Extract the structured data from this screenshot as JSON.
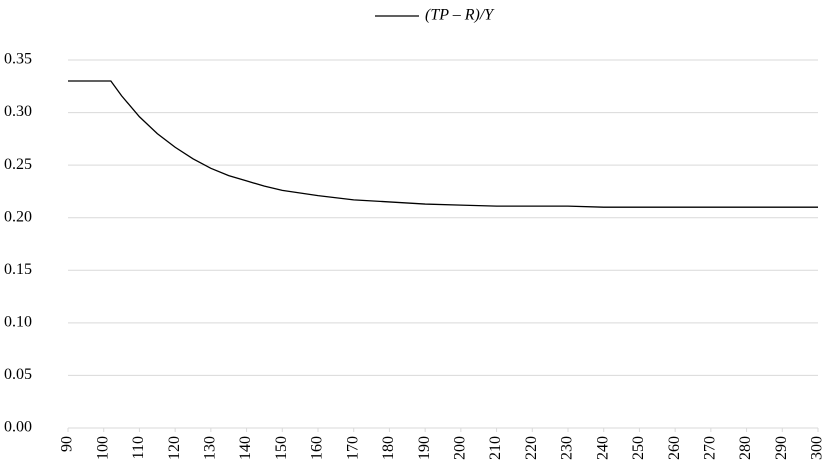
{
  "chart_data": {
    "type": "line",
    "x": [
      90,
      95,
      100,
      102,
      105,
      110,
      115,
      120,
      125,
      130,
      135,
      140,
      145,
      150,
      160,
      170,
      180,
      190,
      200,
      210,
      220,
      230,
      240,
      250,
      260,
      270,
      280,
      290,
      300
    ],
    "series": [
      {
        "name": "(TP – R)/Y",
        "color": "#000000",
        "values": [
          0.33,
          0.33,
          0.33,
          0.33,
          0.316,
          0.296,
          0.28,
          0.267,
          0.256,
          0.247,
          0.24,
          0.235,
          0.23,
          0.226,
          0.221,
          0.217,
          0.215,
          0.213,
          0.212,
          0.211,
          0.211,
          0.211,
          0.21,
          0.21,
          0.21,
          0.21,
          0.21,
          0.21,
          0.21
        ]
      }
    ],
    "xlim": [
      90,
      300
    ],
    "xticks": [
      90,
      100,
      110,
      120,
      130,
      140,
      150,
      160,
      170,
      180,
      190,
      200,
      210,
      220,
      230,
      240,
      250,
      260,
      270,
      280,
      290,
      300
    ],
    "ylim": [
      0,
      0.35
    ],
    "yticks": [
      {
        "value": 0,
        "label": "0.00"
      },
      {
        "value": 0.05,
        "label": "0.05"
      },
      {
        "value": 0.1,
        "label": "0.10"
      },
      {
        "value": 0.15,
        "label": "0.15"
      },
      {
        "value": 0.2,
        "label": "0.20"
      },
      {
        "value": 0.25,
        "label": "0.25"
      },
      {
        "value": 0.3,
        "label": "0.30"
      },
      {
        "value": 0.35,
        "label": "0.35"
      }
    ],
    "grid": true,
    "legend": "top"
  }
}
